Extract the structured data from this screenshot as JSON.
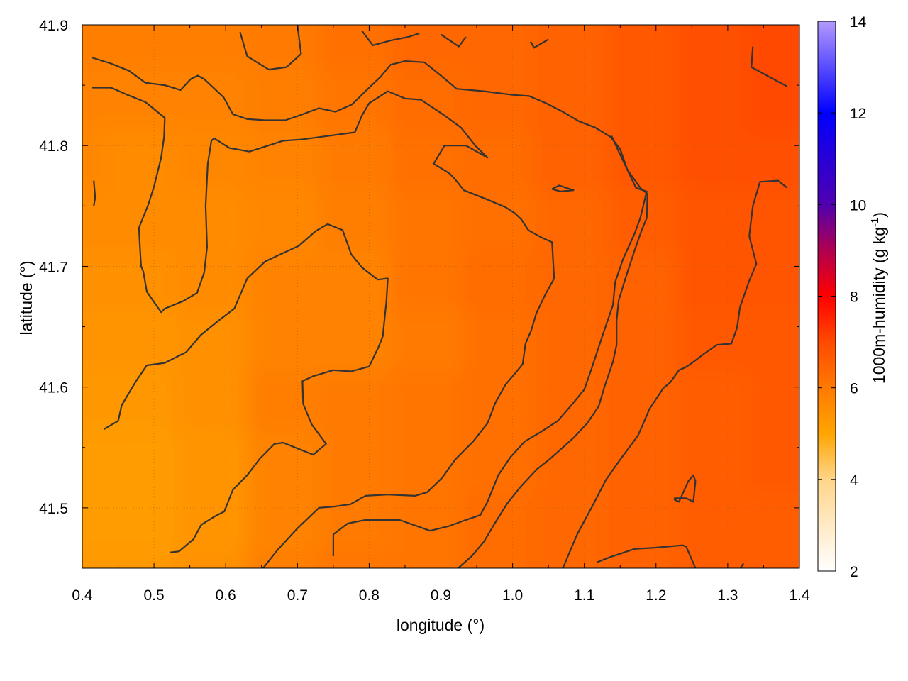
{
  "chart_data": {
    "type": "heatmap",
    "title": "",
    "xlabel": "longitude (°)",
    "ylabel": "latitude (°)",
    "xlim": [
      0.4,
      1.4
    ],
    "ylim": [
      41.45,
      41.9
    ],
    "xticks": [
      0.4,
      0.5,
      0.6,
      0.7,
      0.8,
      0.9,
      1.0,
      1.1,
      1.2,
      1.3,
      1.4
    ],
    "xtick_labels": [
      "0.4",
      "0.5",
      "0.6",
      "0.7",
      "0.8",
      "0.9",
      "1.0",
      "1.1",
      "1.2",
      "1.3",
      "1.4"
    ],
    "yticks": [
      41.5,
      41.6,
      41.7,
      41.8,
      41.9
    ],
    "ytick_labels": [
      "41.5",
      "41.6",
      "41.7",
      "41.8",
      "41.9"
    ],
    "grid": true,
    "colorbar": {
      "label_main": "1000m-humidity (g kg",
      "label_sup": "-1",
      "label_end": ")",
      "range": [
        2,
        14
      ],
      "ticks": [
        2,
        4,
        6,
        8,
        10,
        12,
        14
      ],
      "tick_labels": [
        "2",
        "4",
        "6",
        "8",
        "10",
        "12",
        "14"
      ],
      "stops": [
        {
          "value": 2,
          "color": "#ffffff"
        },
        {
          "value": 4,
          "color": "#ffd58a"
        },
        {
          "value": 5,
          "color": "#ffa500"
        },
        {
          "value": 6,
          "color": "#ff7a00"
        },
        {
          "value": 7,
          "color": "#ff4a00"
        },
        {
          "value": 8,
          "color": "#ff0000"
        },
        {
          "value": 9,
          "color": "#b00050"
        },
        {
          "value": 10,
          "color": "#5000b0"
        },
        {
          "value": 12,
          "color": "#0000ff"
        },
        {
          "value": 14,
          "color": "#b399ff"
        }
      ]
    },
    "field": {
      "x": [
        0.4,
        0.5,
        0.6,
        0.7,
        0.8,
        0.9,
        1.0,
        1.1,
        1.2,
        1.3,
        1.4
      ],
      "y": [
        41.45,
        41.5,
        41.55,
        41.6,
        41.65,
        41.7,
        41.75,
        41.8,
        41.85,
        41.9
      ],
      "z": [
        [
          5.3,
          5.3,
          5.5,
          5.9,
          6.1,
          6.1,
          6.3,
          6.4,
          6.5,
          6.6,
          6.6
        ],
        [
          5.2,
          5.2,
          5.4,
          5.8,
          6.0,
          6.1,
          6.3,
          6.4,
          6.5,
          6.6,
          6.6
        ],
        [
          5.2,
          5.2,
          5.4,
          5.8,
          6.0,
          6.1,
          6.2,
          6.4,
          6.5,
          6.6,
          6.7
        ],
        [
          5.3,
          5.3,
          5.5,
          5.9,
          6.0,
          6.1,
          6.2,
          6.4,
          6.5,
          6.6,
          6.7
        ],
        [
          5.4,
          5.4,
          5.5,
          5.8,
          5.8,
          6.0,
          6.2,
          6.4,
          6.5,
          6.7,
          6.7
        ],
        [
          5.5,
          5.5,
          5.6,
          5.8,
          5.8,
          6.1,
          6.3,
          6.4,
          6.5,
          6.8,
          6.8
        ],
        [
          5.6,
          5.6,
          5.6,
          5.7,
          5.9,
          6.1,
          6.2,
          6.4,
          6.6,
          6.8,
          6.8
        ],
        [
          5.7,
          5.6,
          5.7,
          5.8,
          6.0,
          6.2,
          6.3,
          6.5,
          6.7,
          6.9,
          6.9
        ],
        [
          5.8,
          5.8,
          5.8,
          5.9,
          6.1,
          6.3,
          6.4,
          6.5,
          6.7,
          6.9,
          7.0
        ],
        [
          5.9,
          5.9,
          5.9,
          6.0,
          6.2,
          6.4,
          6.4,
          6.5,
          6.7,
          6.9,
          7.0
        ]
      ]
    },
    "contours": [
      [
        [
          0.413,
          41.873
        ],
        [
          0.44,
          41.868
        ],
        [
          0.465,
          41.862
        ],
        [
          0.488,
          41.852
        ],
        [
          0.515,
          41.85
        ],
        [
          0.537,
          41.846
        ],
        [
          0.551,
          41.855
        ],
        [
          0.561,
          41.858
        ],
        [
          0.57,
          41.855
        ],
        [
          0.597,
          41.84
        ],
        [
          0.61,
          41.826
        ],
        [
          0.63,
          41.822
        ],
        [
          0.655,
          41.821
        ],
        [
          0.683,
          41.821
        ],
        [
          0.703,
          41.825
        ],
        [
          0.73,
          41.831
        ],
        [
          0.753,
          41.828
        ],
        [
          0.776,
          41.834
        ],
        [
          0.8,
          41.848
        ],
        [
          0.816,
          41.857
        ],
        [
          0.83,
          41.867
        ],
        [
          0.85,
          41.87
        ],
        [
          0.877,
          41.869
        ],
        [
          0.9,
          41.858
        ],
        [
          0.922,
          41.847
        ],
        [
          0.96,
          41.845
        ],
        [
          1.0,
          41.842
        ],
        [
          1.023,
          41.841
        ],
        [
          1.047,
          41.835
        ],
        [
          1.07,
          41.828
        ],
        [
          1.093,
          41.82
        ],
        [
          1.115,
          41.815
        ],
        [
          1.137,
          41.807
        ],
        [
          1.15,
          41.797
        ],
        [
          1.16,
          41.78
        ],
        [
          1.178,
          41.765
        ],
        [
          1.188,
          41.76
        ],
        [
          1.187,
          41.74
        ],
        [
          1.18,
          41.73
        ],
        [
          1.17,
          41.713
        ],
        [
          1.16,
          41.695
        ],
        [
          1.148,
          41.672
        ],
        [
          1.145,
          41.655
        ],
        [
          1.145,
          41.635
        ],
        [
          1.14,
          41.621
        ],
        [
          1.128,
          41.6
        ],
        [
          1.12,
          41.584
        ],
        [
          1.104,
          41.57
        ],
        [
          1.085,
          41.558
        ],
        [
          1.07,
          41.55
        ],
        [
          1.053,
          41.541
        ],
        [
          1.034,
          41.532
        ],
        [
          1.012,
          41.518
        ],
        [
          0.993,
          41.504
        ],
        [
          0.975,
          41.487
        ],
        [
          0.96,
          41.472
        ],
        [
          0.943,
          41.46
        ],
        [
          0.924,
          41.45
        ]
      ],
      [
        [
          0.413,
          41.848
        ],
        [
          0.44,
          41.848
        ],
        [
          0.463,
          41.842
        ],
        [
          0.488,
          41.836
        ],
        [
          0.515,
          41.823
        ],
        [
          0.514,
          41.807
        ],
        [
          0.51,
          41.79
        ],
        [
          0.5,
          41.766
        ],
        [
          0.492,
          41.751
        ],
        [
          0.479,
          41.732
        ],
        [
          0.48,
          41.72
        ],
        [
          0.482,
          41.7
        ],
        [
          0.485,
          41.696
        ],
        [
          0.49,
          41.679
        ],
        [
          0.51,
          41.662
        ],
        [
          0.515,
          41.665
        ],
        [
          0.54,
          41.671
        ],
        [
          0.56,
          41.678
        ],
        [
          0.57,
          41.695
        ],
        [
          0.574,
          41.716
        ],
        [
          0.572,
          41.75
        ],
        [
          0.575,
          41.785
        ],
        [
          0.58,
          41.804
        ],
        [
          0.584,
          41.806
        ],
        [
          0.605,
          41.798
        ],
        [
          0.633,
          41.795
        ],
        [
          0.68,
          41.804
        ],
        [
          0.705,
          41.805
        ],
        [
          0.73,
          41.807
        ],
        [
          0.78,
          41.811
        ],
        [
          0.79,
          41.825
        ],
        [
          0.8,
          41.835
        ],
        [
          0.826,
          41.845
        ],
        [
          0.85,
          41.839
        ],
        [
          0.872,
          41.838
        ],
        [
          0.905,
          41.825
        ],
        [
          0.928,
          41.815
        ],
        [
          0.948,
          41.8
        ],
        [
          0.965,
          41.79
        ],
        [
          0.935,
          41.8
        ],
        [
          0.905,
          41.8
        ],
        [
          0.89,
          41.785
        ],
        [
          0.912,
          41.777
        ],
        [
          0.92,
          41.772
        ],
        [
          0.932,
          41.763
        ],
        [
          0.945,
          41.76
        ],
        [
          0.966,
          41.755
        ],
        [
          0.99,
          41.749
        ],
        [
          1.003,
          41.744
        ],
        [
          1.012,
          41.739
        ],
        [
          1.022,
          41.73
        ],
        [
          1.04,
          41.724
        ],
        [
          1.055,
          41.72
        ],
        [
          1.058,
          41.69
        ],
        [
          1.045,
          41.676
        ],
        [
          1.033,
          41.661
        ],
        [
          1.026,
          41.647
        ],
        [
          1.018,
          41.636
        ],
        [
          1.014,
          41.619
        ],
        [
          1.003,
          41.611
        ],
        [
          0.99,
          41.602
        ],
        [
          0.976,
          41.587
        ],
        [
          0.965,
          41.57
        ],
        [
          0.945,
          41.555
        ],
        [
          0.92,
          41.54
        ],
        [
          0.902,
          41.525
        ],
        [
          0.881,
          41.513
        ],
        [
          0.864,
          41.51
        ],
        [
          0.826,
          41.511
        ],
        [
          0.795,
          41.51
        ],
        [
          0.774,
          41.503
        ],
        [
          0.75,
          41.501
        ],
        [
          0.73,
          41.5
        ],
        [
          0.7,
          41.483
        ],
        [
          0.672,
          41.465
        ],
        [
          0.66,
          41.456
        ],
        [
          0.652,
          41.45
        ]
      ],
      [
        [
          0.43,
          41.565
        ],
        [
          0.45,
          41.572
        ],
        [
          0.455,
          41.585
        ],
        [
          0.475,
          41.605
        ],
        [
          0.49,
          41.618
        ],
        [
          0.515,
          41.62
        ],
        [
          0.545,
          41.629
        ],
        [
          0.565,
          41.643
        ],
        [
          0.59,
          41.655
        ],
        [
          0.612,
          41.665
        ],
        [
          0.63,
          41.69
        ],
        [
          0.655,
          41.704
        ],
        [
          0.68,
          41.711
        ],
        [
          0.702,
          41.717
        ],
        [
          0.725,
          41.729
        ],
        [
          0.742,
          41.735
        ],
        [
          0.763,
          41.73
        ],
        [
          0.775,
          41.71
        ],
        [
          0.79,
          41.699
        ],
        [
          0.812,
          41.689
        ],
        [
          0.826,
          41.69
        ],
        [
          0.824,
          41.671
        ],
        [
          0.819,
          41.642
        ],
        [
          0.813,
          41.633
        ],
        [
          0.8,
          41.617
        ],
        [
          0.775,
          41.613
        ],
        [
          0.75,
          41.614
        ],
        [
          0.722,
          41.609
        ],
        [
          0.707,
          41.605
        ],
        [
          0.708,
          41.586
        ],
        [
          0.72,
          41.569
        ],
        [
          0.74,
          41.553
        ],
        [
          0.722,
          41.544
        ],
        [
          0.705,
          41.548
        ],
        [
          0.68,
          41.554
        ],
        [
          0.668,
          41.553
        ],
        [
          0.648,
          41.541
        ],
        [
          0.63,
          41.527
        ],
        [
          0.61,
          41.515
        ],
        [
          0.598,
          41.497
        ],
        [
          0.585,
          41.493
        ],
        [
          0.566,
          41.486
        ],
        [
          0.555,
          41.474
        ],
        [
          0.535,
          41.464
        ],
        [
          0.522,
          41.463
        ]
      ],
      [
        [
          0.75,
          41.46
        ],
        [
          0.75,
          41.478
        ],
        [
          0.77,
          41.487
        ],
        [
          0.795,
          41.49
        ],
        [
          0.842,
          41.49
        ],
        [
          0.885,
          41.481
        ],
        [
          0.912,
          41.485
        ],
        [
          0.935,
          41.49
        ],
        [
          0.955,
          41.494
        ],
        [
          0.965,
          41.505
        ],
        [
          0.98,
          41.527
        ],
        [
          0.997,
          41.542
        ],
        [
          1.017,
          41.555
        ],
        [
          1.04,
          41.563
        ],
        [
          1.063,
          41.572
        ],
        [
          1.082,
          41.585
        ],
        [
          1.1,
          41.598
        ],
        [
          1.11,
          41.615
        ],
        [
          1.125,
          41.642
        ],
        [
          1.14,
          41.668
        ],
        [
          1.143,
          41.687
        ],
        [
          1.154,
          41.706
        ],
        [
          1.17,
          41.727
        ],
        [
          1.178,
          41.74
        ],
        [
          1.187,
          41.762
        ],
        [
          1.172,
          41.765
        ],
        [
          1.148,
          41.795
        ],
        [
          1.138,
          41.808
        ]
      ],
      [
        [
          1.335,
          41.882
        ],
        [
          1.333,
          41.865
        ],
        [
          1.37,
          41.853
        ],
        [
          1.383,
          41.849
        ]
      ],
      [
        [
          1.383,
          41.765
        ],
        [
          1.37,
          41.771
        ],
        [
          1.345,
          41.77
        ],
        [
          1.335,
          41.75
        ],
        [
          1.33,
          41.725
        ],
        [
          1.34,
          41.702
        ],
        [
          1.33,
          41.688
        ],
        [
          1.317,
          41.666
        ],
        [
          1.313,
          41.649
        ],
        [
          1.305,
          41.636
        ],
        [
          1.285,
          41.635
        ],
        [
          1.268,
          41.628
        ],
        [
          1.248,
          41.619
        ],
        [
          1.24,
          41.616
        ],
        [
          1.232,
          41.614
        ],
        [
          1.22,
          41.604
        ],
        [
          1.21,
          41.599
        ],
        [
          1.191,
          41.582
        ],
        [
          1.175,
          41.56
        ],
        [
          1.15,
          41.54
        ],
        [
          1.13,
          41.523
        ],
        [
          1.11,
          41.5
        ],
        [
          1.09,
          41.478
        ],
        [
          1.07,
          41.45
        ]
      ],
      [
        [
          1.118,
          41.455
        ],
        [
          1.135,
          41.459
        ],
        [
          1.15,
          41.462
        ],
        [
          1.17,
          41.466
        ],
        [
          1.198,
          41.467
        ],
        [
          1.237,
          41.469
        ],
        [
          1.242,
          41.468
        ],
        [
          1.255,
          41.45
        ]
      ],
      [
        [
          1.225,
          41.508
        ],
        [
          1.242,
          41.508
        ],
        [
          1.252,
          41.505
        ],
        [
          1.255,
          41.522
        ],
        [
          1.252,
          41.527
        ],
        [
          1.245,
          41.522
        ],
        [
          1.232,
          41.505
        ],
        [
          1.225,
          41.507
        ]
      ],
      [
        [
          1.055,
          41.764
        ],
        [
          1.065,
          41.767
        ],
        [
          1.085,
          41.763
        ],
        [
          1.067,
          41.762
        ],
        [
          1.055,
          41.764
        ]
      ],
      [
        [
          0.62,
          41.894
        ],
        [
          0.63,
          41.874
        ],
        [
          0.66,
          41.863
        ],
        [
          0.685,
          41.865
        ],
        [
          0.705,
          41.876
        ],
        [
          0.7,
          41.9
        ]
      ],
      [
        [
          0.79,
          41.895
        ],
        [
          0.805,
          41.883
        ],
        [
          0.83,
          41.887
        ],
        [
          0.855,
          41.89
        ],
        [
          0.87,
          41.893
        ]
      ],
      [
        [
          0.9,
          41.892
        ],
        [
          0.925,
          41.882
        ],
        [
          0.935,
          41.89
        ]
      ],
      [
        [
          1.025,
          41.886
        ],
        [
          1.03,
          41.881
        ],
        [
          1.05,
          41.888
        ]
      ],
      [
        [
          0.416,
          41.771
        ],
        [
          0.418,
          41.757
        ],
        [
          0.416,
          41.75
        ]
      ],
      [
        [
          1.318,
          41.45
        ],
        [
          1.322,
          41.454
        ]
      ]
    ]
  }
}
